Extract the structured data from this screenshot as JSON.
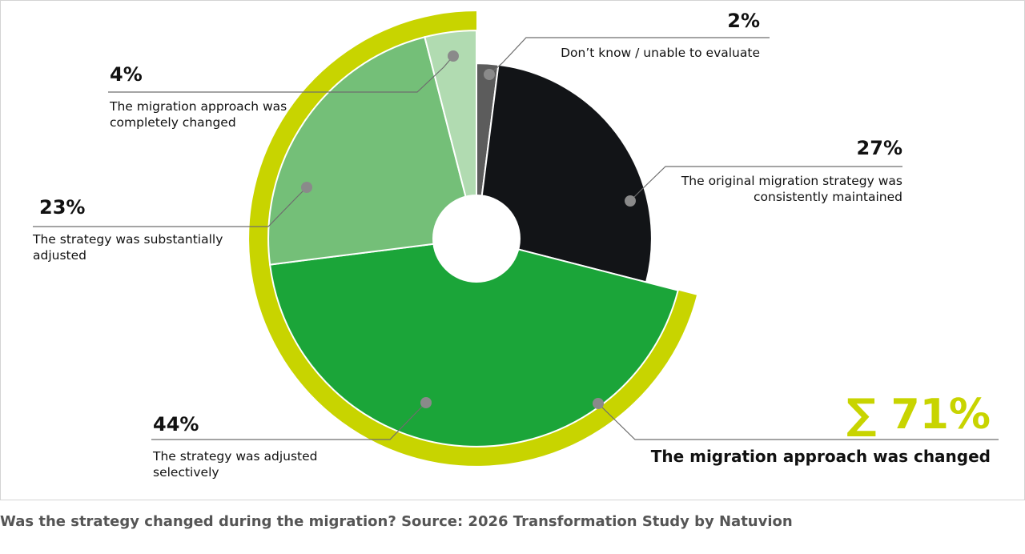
{
  "chart_data": {
    "type": "pie",
    "title": "",
    "start_angle_deg": 0,
    "slices": [
      {
        "value": 2,
        "pct_label": "2%",
        "label_lines": [
          "Don’t know / unable to evaluate"
        ],
        "color": "#5c5c5c",
        "scale": 0.96
      },
      {
        "value": 27,
        "pct_label": "27%",
        "label_lines": [
          "The original migration strategy was",
          "consistently maintained"
        ],
        "color": "#121417",
        "scale": 0.96
      },
      {
        "value": 44,
        "pct_label": "44%",
        "label_lines": [
          "The strategy was adjusted",
          "selectively"
        ],
        "color": "#1ba539",
        "scale": 1.14
      },
      {
        "value": 23,
        "pct_label": "23%",
        "label_lines": [
          "The strategy was substantially",
          "adjusted"
        ],
        "color": "#74bf78",
        "scale": 1.14
      },
      {
        "value": 4,
        "pct_label": "4%",
        "label_lines": [
          "The migration approach was",
          "completely changed"
        ],
        "color": "#b1dbb1",
        "scale": 1.14
      }
    ],
    "changed_ring": {
      "color": "#c8d400",
      "slices": [
        2,
        3,
        4
      ]
    },
    "summary": {
      "value": "∑ 71%",
      "label": "The migration approach was changed",
      "color": "#c8d400"
    }
  },
  "caption": "Was the strategy changed during the migration? Source: 2026 Transformation Study by Natuvion"
}
